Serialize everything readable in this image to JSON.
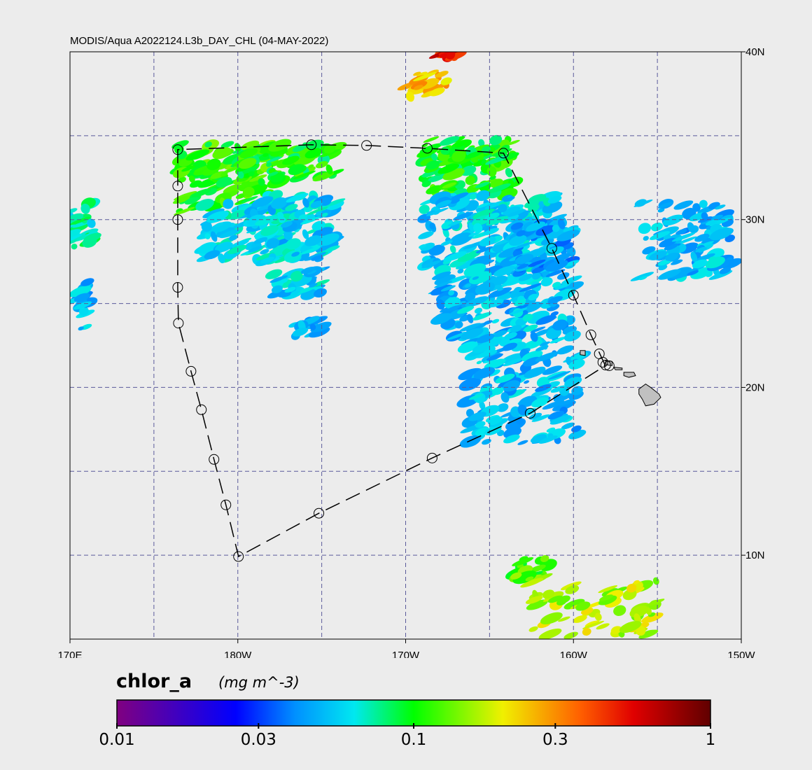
{
  "title": "MODIS/Aqua A2022124.L3b_DAY_CHL (04-MAY-2022)",
  "map": {
    "lon_range_east": [
      170,
      210
    ],
    "lat_range": [
      5,
      40
    ],
    "grid_lon_step": 5,
    "grid_lat_step": 5,
    "lon_labels": [
      {
        "lon": 170,
        "text": "170E"
      },
      {
        "lon": 180,
        "text": "180W"
      },
      {
        "lon": 190,
        "text": "170W"
      },
      {
        "lon": 200,
        "text": "160W"
      },
      {
        "lon": 210,
        "text": "150W"
      }
    ],
    "lat_labels": [
      {
        "lat": 40,
        "text": "40N"
      },
      {
        "lat": 30,
        "text": "30N"
      },
      {
        "lat": 20,
        "text": "20N"
      },
      {
        "lat": 10,
        "text": "10N"
      }
    ],
    "track": [
      [
        201.9,
        21.3
      ],
      [
        201.04,
        23.13
      ],
      [
        200.0,
        25.5
      ],
      [
        198.71,
        28.29
      ],
      [
        195.83,
        33.96
      ],
      [
        191.29,
        34.25
      ],
      [
        187.67,
        34.42
      ],
      [
        184.38,
        34.46
      ],
      [
        176.42,
        34.17
      ],
      [
        176.42,
        32.0
      ],
      [
        176.42,
        30.0
      ],
      [
        176.42,
        25.96
      ],
      [
        176.46,
        23.83
      ],
      [
        177.21,
        20.96
      ],
      [
        177.83,
        18.67
      ],
      [
        178.58,
        15.71
      ],
      [
        179.29,
        13.0
      ],
      [
        180.04,
        9.92
      ],
      [
        184.83,
        12.5
      ],
      [
        191.58,
        15.79
      ],
      [
        197.42,
        18.46
      ],
      [
        201.9,
        21.3
      ]
    ],
    "stations": [
      [
        176.42,
        34.17
      ],
      [
        176.42,
        32.0
      ],
      [
        176.42,
        30.0
      ],
      [
        176.42,
        25.96
      ],
      [
        176.46,
        23.83
      ],
      [
        177.21,
        20.96
      ],
      [
        177.83,
        18.67
      ],
      [
        178.58,
        15.71
      ],
      [
        179.29,
        13.0
      ],
      [
        180.04,
        9.92
      ],
      [
        184.83,
        12.5
      ],
      [
        191.58,
        15.79
      ],
      [
        197.42,
        18.46
      ],
      [
        201.04,
        23.13
      ],
      [
        200.0,
        25.5
      ],
      [
        198.71,
        28.29
      ],
      [
        195.83,
        33.96
      ],
      [
        191.29,
        34.25
      ],
      [
        187.67,
        34.42
      ],
      [
        184.38,
        34.46
      ],
      [
        201.54,
        22.0
      ],
      [
        201.75,
        21.5
      ],
      [
        201.92,
        21.33
      ],
      [
        202.13,
        21.29
      ]
    ],
    "islands": [
      [
        [
          203.9,
          19.9
        ],
        [
          204.3,
          20.2
        ],
        [
          204.6,
          20.0
        ],
        [
          205.1,
          19.6
        ],
        [
          205.2,
          19.4
        ],
        [
          204.8,
          19.0
        ],
        [
          204.3,
          18.9
        ],
        [
          204.1,
          19.3
        ],
        [
          203.9,
          19.6
        ]
      ],
      [
        [
          203.0,
          20.9
        ],
        [
          203.6,
          20.9
        ],
        [
          203.7,
          20.7
        ],
        [
          203.3,
          20.6
        ],
        [
          203.0,
          20.7
        ]
      ],
      [
        [
          202.4,
          21.2
        ],
        [
          202.9,
          21.15
        ],
        [
          202.9,
          21.05
        ],
        [
          202.5,
          21.05
        ]
      ],
      [
        [
          201.9,
          21.6
        ],
        [
          202.3,
          21.55
        ],
        [
          202.3,
          21.3
        ],
        [
          201.95,
          21.35
        ]
      ],
      [
        [
          200.4,
          22.2
        ],
        [
          200.7,
          22.2
        ],
        [
          200.7,
          21.9
        ],
        [
          200.4,
          21.95
        ]
      ]
    ],
    "chl_patches": [
      {
        "lon": [
          176.5,
          182.5
        ],
        "lat": [
          30.5,
          34.5
        ],
        "chl": 0.11,
        "n": 140
      },
      {
        "lon": [
          180,
          186
        ],
        "lat": [
          32.5,
          34.5
        ],
        "chl": 0.1,
        "n": 60
      },
      {
        "lon": [
          178,
          183
        ],
        "lat": [
          27.5,
          31
        ],
        "chl": 0.06,
        "n": 90
      },
      {
        "lon": [
          181,
          186
        ],
        "lat": [
          27.5,
          31.5
        ],
        "chl": 0.055,
        "n": 110
      },
      {
        "lon": [
          182,
          185
        ],
        "lat": [
          25.5,
          27
        ],
        "chl": 0.055,
        "n": 30
      },
      {
        "lon": [
          183.3,
          185
        ],
        "lat": [
          23,
          24.3
        ],
        "chl": 0.05,
        "n": 18
      },
      {
        "lon": [
          191,
          196.5
        ],
        "lat": [
          31.5,
          34.8
        ],
        "chl": 0.1,
        "n": 120
      },
      {
        "lon": [
          191,
          199
        ],
        "lat": [
          27,
          31.5
        ],
        "chl": 0.055,
        "n": 200
      },
      {
        "lon": [
          192,
          200
        ],
        "lat": [
          22.5,
          27
        ],
        "chl": 0.05,
        "n": 180
      },
      {
        "lon": [
          193.5,
          200.5
        ],
        "lat": [
          16.5,
          22.5
        ],
        "chl": 0.05,
        "n": 150
      },
      {
        "lon": [
          196.5,
          200
        ],
        "lat": [
          27,
          30
        ],
        "chl": 0.045,
        "n": 60
      },
      {
        "lon": [
          204,
          209.5
        ],
        "lat": [
          26.5,
          31
        ],
        "chl": 0.05,
        "n": 110
      },
      {
        "lon": [
          170,
          171.4
        ],
        "lat": [
          28,
          31.5
        ],
        "chl": 0.07,
        "n": 25
      },
      {
        "lon": [
          170,
          171.2
        ],
        "lat": [
          23.5,
          26.5
        ],
        "chl": 0.05,
        "n": 20
      },
      {
        "lon": [
          190,
          192.5
        ],
        "lat": [
          37.3,
          38.8
        ],
        "chl": 0.25,
        "n": 20
      },
      {
        "lon": [
          192,
          193.5
        ],
        "lat": [
          39.6,
          40
        ],
        "chl": 0.5,
        "n": 10
      },
      {
        "lon": [
          196.5,
          198.5
        ],
        "lat": [
          8.5,
          9.8
        ],
        "chl": 0.12,
        "n": 25
      },
      {
        "lon": [
          197.5,
          205
        ],
        "lat": [
          5.2,
          8.5
        ],
        "chl": 0.17,
        "n": 70
      }
    ]
  },
  "colorbar": {
    "title": "chlor_a",
    "units": "(mg m^-3)",
    "range": [
      0.01,
      1
    ],
    "scale": "log",
    "ticks": [
      {
        "v": 0.01,
        "text": "0.01"
      },
      {
        "v": 0.03,
        "text": "0.03"
      },
      {
        "v": 0.1,
        "text": "0.1"
      },
      {
        "v": 0.3,
        "text": "0.3"
      },
      {
        "v": 1,
        "text": "1"
      }
    ],
    "stops": [
      [
        0,
        "#800080"
      ],
      [
        0.2,
        "#0000ff"
      ],
      [
        0.3,
        "#0090ff"
      ],
      [
        0.4,
        "#00e8f0"
      ],
      [
        0.5,
        "#00ff00"
      ],
      [
        0.65,
        "#f0f000"
      ],
      [
        0.78,
        "#ff6000"
      ],
      [
        0.87,
        "#e00000"
      ],
      [
        1,
        "#600000"
      ]
    ]
  },
  "colors": {
    "grid": "#5a5a9a",
    "land": "#c0c0c0",
    "background": "#ececec"
  }
}
